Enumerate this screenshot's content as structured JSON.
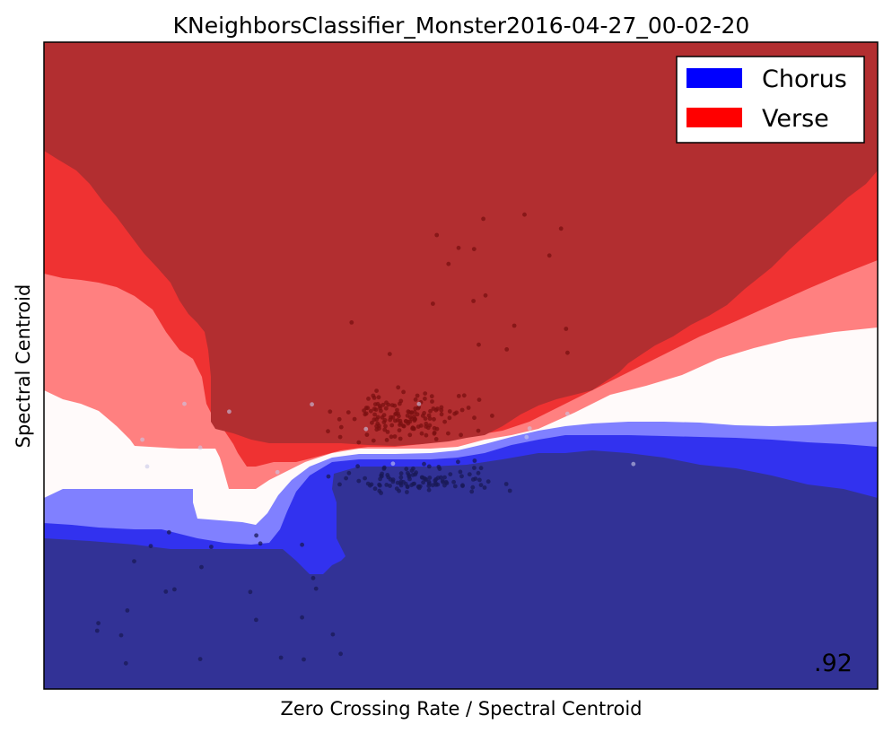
{
  "chart_data": {
    "type": "contour",
    "title": "KNeighborsClassifier_Monster2016-04-27_00-02-20",
    "xlabel": "Zero Crossing Rate / Spectral Centroid",
    "ylabel": "Spectral Centroid",
    "xticks": [],
    "yticks": [],
    "legend": {
      "placement": "top-right",
      "entries": [
        {
          "label": "Chorus",
          "color": "#0000ff"
        },
        {
          "label": "Verse",
          "color": "#ff0000"
        }
      ]
    },
    "score_annotation": ".92",
    "decision_regions": [
      {
        "level": "strong-verse",
        "color": "#b22e30"
      },
      {
        "level": "verse",
        "color": "#ef3232"
      },
      {
        "level": "weak-verse",
        "color": "#ff8080"
      },
      {
        "level": "neutral",
        "color": "#fffafa"
      },
      {
        "level": "weak-chorus",
        "color": "#8080ff"
      },
      {
        "level": "chorus",
        "color": "#3232ef"
      },
      {
        "level": "strong-chorus",
        "color": "#323296"
      }
    ]
  }
}
